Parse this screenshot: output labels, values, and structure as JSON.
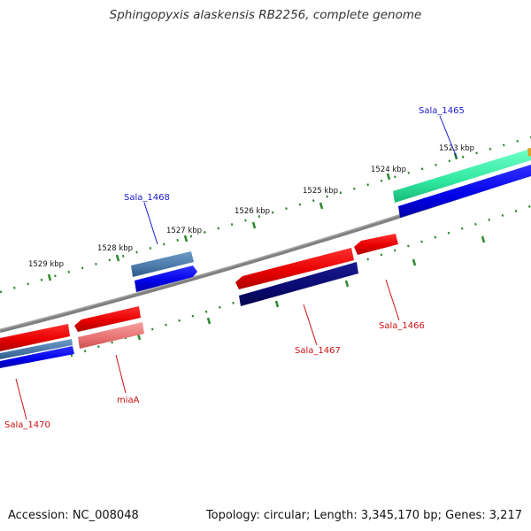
{
  "title": "Sphingopyxis alaskensis RB2256, complete genome",
  "footer": {
    "accession": "Accession: NC_008048",
    "summary": "Topology: circular; Length: 3,345,170 bp; Genes: 3,217"
  },
  "ticks": [
    {
      "label": "1523 kbp"
    },
    {
      "label": "1524 kbp"
    },
    {
      "label": "1525 kbp"
    },
    {
      "label": "1526 kbp"
    },
    {
      "label": "1527 kbp"
    },
    {
      "label": "1528 kbp"
    },
    {
      "label": "1529 kbp"
    }
  ],
  "genes": [
    {
      "label": "Sala_1465",
      "color": "#1a1acc"
    },
    {
      "label": "Sala_1466",
      "color": "#cc1010"
    },
    {
      "label": "Sala_1467",
      "color": "#cc1010"
    },
    {
      "label": "Sala_1468",
      "color": "#1a1acc"
    },
    {
      "label": "miaA",
      "color": "#cc1010"
    },
    {
      "label": "Sala_1470",
      "color": "#cc1010"
    }
  ],
  "colors": {
    "backbone": "#808080",
    "tick_dots": "#2a8a2a",
    "cds_red": "#ee0000",
    "cds_pink": "#ee8080",
    "cds_blue": "#1010ee",
    "cds_navy": "#10107a",
    "cds_steel": "#4f7fb0",
    "cds_teal": "#30e8a0",
    "label_red": "#cc1010",
    "label_blue": "#1a1acc"
  }
}
